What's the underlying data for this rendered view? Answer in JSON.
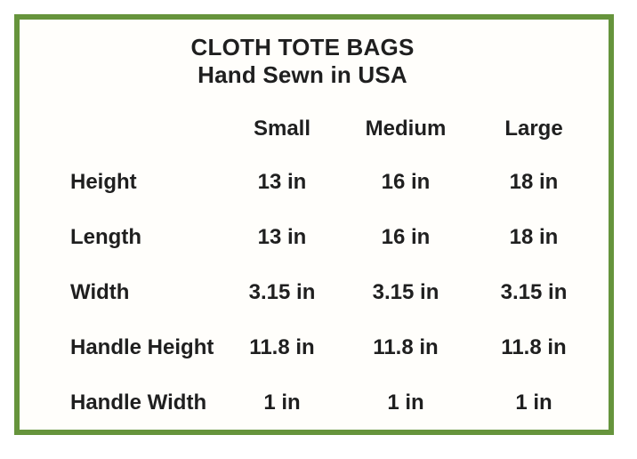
{
  "card": {
    "background": "#ffffff",
    "border_color": "#66943c",
    "text_color": "#1f1f1f"
  },
  "chart_data": {
    "type": "table",
    "title": "CLOTH TOTE BAGS",
    "subtitle": "Hand Sewn in USA",
    "columns": [
      "Small",
      "Medium",
      "Large"
    ],
    "row_header_column": "",
    "rows": [
      {
        "label": "Height",
        "values": [
          "13 in",
          "16 in",
          "18 in"
        ]
      },
      {
        "label": "Length",
        "values": [
          "13 in",
          "16 in",
          "18 in"
        ]
      },
      {
        "label": "Width",
        "values": [
          "3.15 in",
          "3.15 in",
          "3.15 in"
        ]
      },
      {
        "label": "Handle Height",
        "values": [
          "11.8 in",
          "11.8 in",
          "11.8 in"
        ]
      },
      {
        "label": "Handle Width",
        "values": [
          "1 in",
          "1 in",
          "1 in"
        ]
      }
    ],
    "units": "inches",
    "layout": {
      "grid": false,
      "legend": "none"
    }
  }
}
